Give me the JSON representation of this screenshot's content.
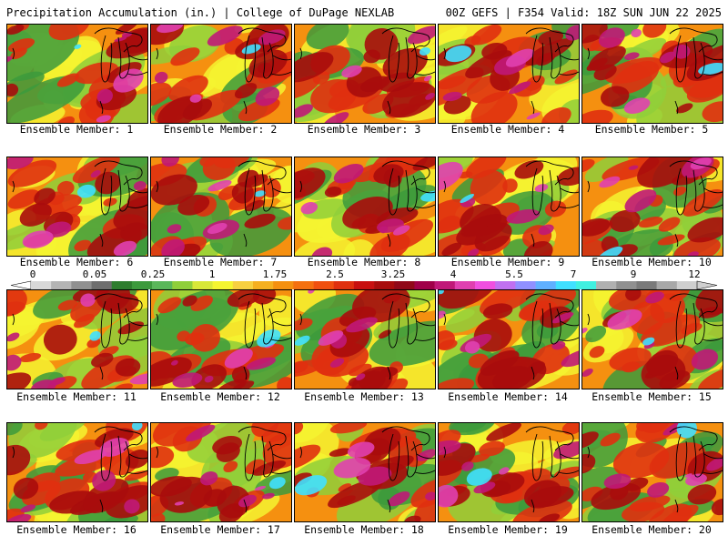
{
  "header": {
    "title": "Precipitation Accumulation (in.) | College of DuPage NEXLAB",
    "run_info": "00Z GEFS | F354 Valid: 18Z SUN JUN 22 2025"
  },
  "colorbar": {
    "tick_labels": [
      "0",
      "0.05",
      "0.25",
      "1",
      "1.75",
      "2.5",
      "3.25",
      "4",
      "5.5",
      "7",
      "9",
      "12"
    ],
    "colors": [
      "#d8d8d8",
      "#b4b4b4",
      "#909090",
      "#6e6e6e",
      "#2e7d2e",
      "#3c9a3c",
      "#5ab75a",
      "#8fcf3a",
      "#d8e838",
      "#f5f530",
      "#f7d040",
      "#f5b020",
      "#f59010",
      "#f57010",
      "#f05010",
      "#e03010",
      "#c81010",
      "#a80c0c",
      "#900818",
      "#a00048",
      "#c01878",
      "#e040b0",
      "#f050e0",
      "#c070f0",
      "#9090ff",
      "#60b0ff",
      "#40e0ff",
      "#40f0e0",
      "#b0b0b0",
      "#909090",
      "#7a7a7a",
      "#a8a8a8",
      "#cfcfcf"
    ]
  },
  "members": [
    {
      "label": "Ensemble Member: 1"
    },
    {
      "label": "Ensemble Member: 2"
    },
    {
      "label": "Ensemble Member: 3"
    },
    {
      "label": "Ensemble Member: 4"
    },
    {
      "label": "Ensemble Member: 5"
    },
    {
      "label": "Ensemble Member: 6"
    },
    {
      "label": "Ensemble Member: 7"
    },
    {
      "label": "Ensemble Member: 8"
    },
    {
      "label": "Ensemble Member: 9"
    },
    {
      "label": "Ensemble Member: 10"
    },
    {
      "label": "Ensemble Member: 11"
    },
    {
      "label": "Ensemble Member: 12"
    },
    {
      "label": "Ensemble Member: 13"
    },
    {
      "label": "Ensemble Member: 14"
    },
    {
      "label": "Ensemble Member: 15"
    },
    {
      "label": "Ensemble Member: 16"
    },
    {
      "label": "Ensemble Member: 17"
    },
    {
      "label": "Ensemble Member: 18"
    },
    {
      "label": "Ensemble Member: 19"
    },
    {
      "label": "Ensemble Member: 20"
    }
  ],
  "palette": {
    "green": "#3c9a3c",
    "lightgreen": "#8fcf3a",
    "yellow": "#f5f530",
    "orange": "#f59010",
    "red": "#e03010",
    "darkred": "#a80c0c",
    "magenta": "#c01878",
    "pink": "#e040b0",
    "cyan": "#40e0ff",
    "gray": "#909090",
    "coastline": "#000000"
  }
}
